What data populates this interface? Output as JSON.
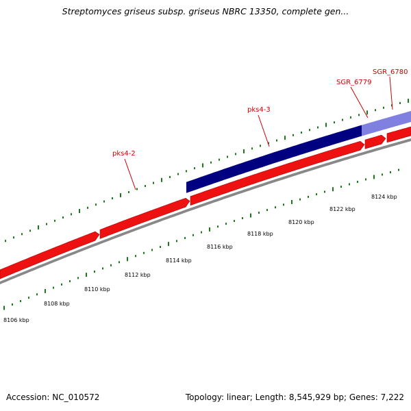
{
  "title": "Streptomyces griseus subsp. griseus NBRC 13350, complete gen...",
  "footer": {
    "accession": "Accession: NC_010572",
    "topology": "Topology: linear; Length: 8,545,929 bp; Genes: 7,222"
  },
  "colors": {
    "gene_red": "#ee1111",
    "gene_red_dark": "#b00000",
    "pks_navy": "#000080",
    "pks_light": "#8080e0",
    "backbone": "#888888",
    "tick_green": "#1a7a1a",
    "label_red": "#cc0000"
  },
  "features": [
    {
      "name": "pks4-2"
    },
    {
      "name": "pks4-3"
    },
    {
      "name": "SGR_6779"
    },
    {
      "name": "SGR_6780"
    }
  ],
  "scale_labels": [
    "8106 kbp",
    "8108 kbp",
    "8110 kbp",
    "8112 kbp",
    "8114 kbp",
    "8116 kbp",
    "8118 kbp",
    "8120 kbp",
    "8122 kbp",
    "8124 kbp"
  ]
}
